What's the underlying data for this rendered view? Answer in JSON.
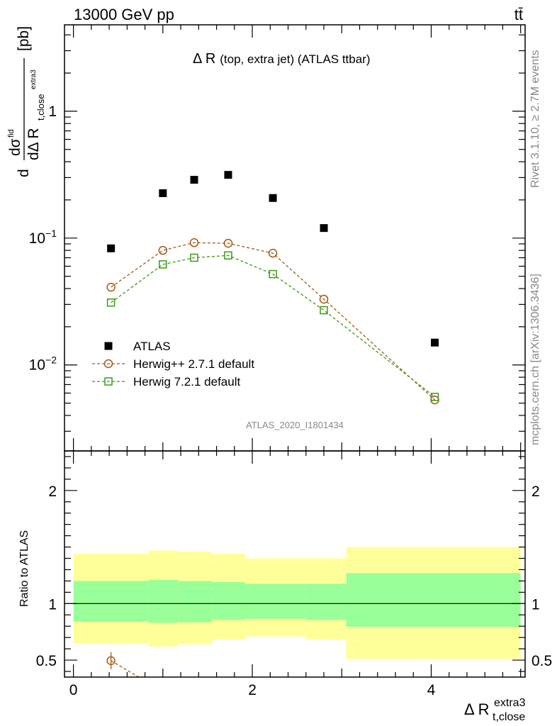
{
  "header": {
    "energy": "13000 GeV pp",
    "process": "tt̄"
  },
  "side": {
    "rivet": "Rivet 3.1.10, ≥ 2.7M events",
    "mcplots": "mcplots.cern.ch [arXiv:1306.3436]"
  },
  "title": {
    "main": "Δ R",
    "sub": "(top, extra jet) (ATLAS ttbar)"
  },
  "watermark": "ATLAS_2020_I1801434",
  "ylabel_main": {
    "unit": "[pb]"
  },
  "ylabel_ratio": "Ratio to ATLAS",
  "xlabel": {
    "main": "Δ R",
    "sub": "t,close",
    "sup": "extra3"
  },
  "legend": [
    {
      "label": "ATLAS",
      "marker": "square-filled",
      "color": "#000000"
    },
    {
      "label": "Herwig++ 2.7.1 default",
      "marker": "circle-open",
      "color": "#a05a14"
    },
    {
      "label": "Herwig 7.2.1 default",
      "marker": "square-open",
      "color": "#3c9a14"
    }
  ],
  "chart_data": [
    {
      "type": "scatter",
      "panel": "main",
      "yscale": "log",
      "ylim": [
        0.0021,
        4.8
      ],
      "xlim": [
        -0.1,
        5.05
      ],
      "yticks": [
        {
          "v": 1,
          "label": "1"
        },
        {
          "v": 0.1,
          "label": "10",
          "exp": "−1"
        },
        {
          "v": 0.01,
          "label": "10",
          "exp": "−2"
        }
      ],
      "series": [
        {
          "name": "ATLAS",
          "points": [
            [
              0.42,
              0.083
            ],
            [
              1.0,
              0.226
            ],
            [
              1.35,
              0.288
            ],
            [
              1.73,
              0.315
            ],
            [
              2.23,
              0.207
            ],
            [
              2.8,
              0.12
            ],
            [
              4.04,
              0.015
            ]
          ]
        },
        {
          "name": "Herwig++ 2.7.1 default",
          "points": [
            [
              0.42,
              0.041
            ],
            [
              1.0,
              0.08
            ],
            [
              1.35,
              0.092
            ],
            [
              1.73,
              0.091
            ],
            [
              2.23,
              0.076
            ],
            [
              2.8,
              0.033
            ],
            [
              4.04,
              0.0053
            ]
          ]
        },
        {
          "name": "Herwig 7.2.1 default",
          "points": [
            [
              0.42,
              0.031
            ],
            [
              1.0,
              0.062
            ],
            [
              1.35,
              0.07
            ],
            [
              1.73,
              0.073
            ],
            [
              2.23,
              0.052
            ],
            [
              2.8,
              0.027
            ],
            [
              4.04,
              0.0056
            ]
          ]
        }
      ]
    },
    {
      "type": "area",
      "panel": "ratio",
      "xlim": [
        -0.1,
        5.05
      ],
      "ylim": [
        0.35,
        2.35
      ],
      "yticks": [
        {
          "v": 2,
          "label": "2"
        },
        {
          "v": 1,
          "label": "1"
        },
        {
          "v": 0.5,
          "label": "0.5"
        }
      ],
      "xticks": [
        {
          "v": 0,
          "label": "0"
        },
        {
          "v": 2,
          "label": "2"
        },
        {
          "v": 4,
          "label": "4"
        }
      ],
      "bins": [
        {
          "x0": 0.0,
          "x1": 0.84,
          "stat": [
            0.84,
            1.2
          ],
          "total": [
            0.65,
            1.44
          ]
        },
        {
          "x0": 0.84,
          "x1": 1.17,
          "stat": [
            0.83,
            1.21
          ],
          "total": [
            0.62,
            1.47
          ]
        },
        {
          "x0": 1.17,
          "x1": 1.55,
          "stat": [
            0.835,
            1.2
          ],
          "total": [
            0.64,
            1.46
          ]
        },
        {
          "x0": 1.55,
          "x1": 1.92,
          "stat": [
            0.855,
            1.19
          ],
          "total": [
            0.68,
            1.44
          ]
        },
        {
          "x0": 1.92,
          "x1": 2.6,
          "stat": [
            0.865,
            1.175
          ],
          "total": [
            0.71,
            1.4
          ]
        },
        {
          "x0": 2.6,
          "x1": 3.05,
          "stat": [
            0.855,
            1.175
          ],
          "total": [
            0.68,
            1.4
          ]
        },
        {
          "x0": 3.05,
          "x1": 5.0,
          "stat": [
            0.795,
            1.27
          ],
          "total": [
            0.51,
            1.5
          ]
        }
      ],
      "series": [
        {
          "name": "Herwig++ 2.7.1 default",
          "points": [
            [
              0.42,
              0.495
            ],
            [
              0.73,
              0.35
            ]
          ]
        }
      ]
    }
  ],
  "colors": {
    "stat_band": "#99ff99",
    "total_band": "#ffff99",
    "herwigpp": "#a05a14",
    "herwig7": "#3c9a14"
  }
}
